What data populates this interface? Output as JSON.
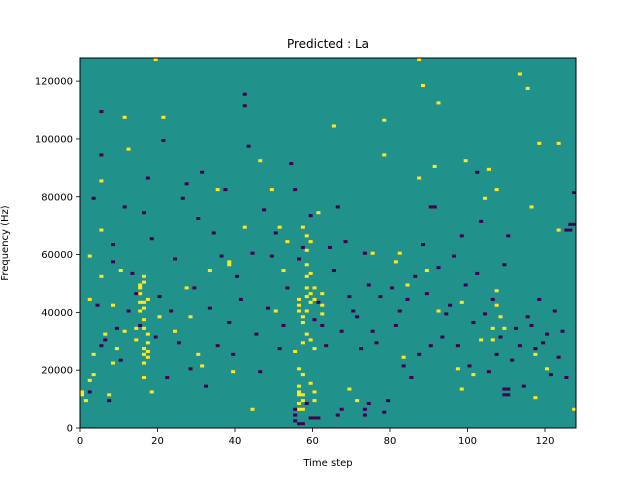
{
  "chart_data": {
    "type": "heatmap",
    "title": "Predicted : La",
    "xlabel": "Time step",
    "ylabel": "Frequency (Hz)",
    "xlim": [
      0,
      128
    ],
    "ylim": [
      0,
      128000
    ],
    "xticks": [
      0,
      20,
      40,
      60,
      80,
      100,
      120
    ],
    "yticks": [
      0,
      20000,
      40000,
      60000,
      80000,
      100000,
      120000
    ],
    "xtick_labels": [
      "0",
      "20",
      "40",
      "60",
      "80",
      "100",
      "120"
    ],
    "ytick_labels": [
      "0",
      "20000",
      "40000",
      "60000",
      "80000",
      "100000",
      "120000"
    ],
    "grid": false,
    "grid_shape": {
      "time_steps": 128,
      "freq_bins": 128,
      "bin_hz": 1000
    },
    "colormap": {
      "low": "#440154",
      "mid": "#21918c",
      "high": "#fde725"
    },
    "background_value": 0,
    "value_levels": [
      -1,
      0,
      1
    ],
    "high_cells": [
      [
        0,
        12
      ],
      [
        0,
        11
      ],
      [
        1,
        9
      ],
      [
        2,
        16
      ],
      [
        2,
        44
      ],
      [
        2,
        59
      ],
      [
        3,
        18
      ],
      [
        3,
        25
      ],
      [
        5,
        52
      ],
      [
        5,
        68
      ],
      [
        5,
        85
      ],
      [
        6,
        32
      ],
      [
        7,
        11
      ],
      [
        8,
        22
      ],
      [
        8,
        42
      ],
      [
        9,
        27
      ],
      [
        10,
        54
      ],
      [
        11,
        107
      ],
      [
        11,
        33
      ],
      [
        12,
        96
      ],
      [
        14,
        34
      ],
      [
        14,
        30
      ],
      [
        15,
        48
      ],
      [
        15,
        49
      ],
      [
        15,
        46
      ],
      [
        15,
        43
      ],
      [
        15,
        40
      ],
      [
        16,
        52
      ],
      [
        16,
        50
      ],
      [
        16,
        43
      ],
      [
        16,
        41
      ],
      [
        16,
        37
      ],
      [
        16,
        34
      ],
      [
        16,
        27
      ],
      [
        16,
        25
      ],
      [
        16,
        22
      ],
      [
        16,
        17
      ],
      [
        17,
        44
      ],
      [
        17,
        32
      ],
      [
        17,
        29
      ],
      [
        17,
        26
      ],
      [
        17,
        24
      ],
      [
        18,
        12
      ],
      [
        19,
        127
      ],
      [
        20,
        38
      ],
      [
        21,
        107
      ],
      [
        24,
        33
      ],
      [
        27,
        48
      ],
      [
        28,
        38
      ],
      [
        30,
        25
      ],
      [
        31,
        21
      ],
      [
        33,
        54
      ],
      [
        35,
        82
      ],
      [
        38,
        56
      ],
      [
        38,
        57
      ],
      [
        39,
        19
      ],
      [
        42,
        69
      ],
      [
        44,
        6
      ],
      [
        46,
        92
      ],
      [
        49,
        82
      ],
      [
        50,
        40
      ],
      [
        51,
        69
      ],
      [
        52,
        54
      ],
      [
        53,
        64
      ],
      [
        55,
        26
      ],
      [
        56,
        20
      ],
      [
        56,
        14
      ],
      [
        56,
        12
      ],
      [
        56,
        11
      ],
      [
        56,
        8
      ],
      [
        56,
        6
      ],
      [
        56,
        44
      ],
      [
        56,
        42
      ],
      [
        56,
        40
      ],
      [
        57,
        69
      ],
      [
        57,
        38
      ],
      [
        57,
        36
      ],
      [
        57,
        29
      ],
      [
        57,
        18
      ],
      [
        57,
        11
      ],
      [
        57,
        9
      ],
      [
        57,
        6
      ],
      [
        58,
        66
      ],
      [
        58,
        61
      ],
      [
        58,
        56
      ],
      [
        58,
        52
      ],
      [
        58,
        48
      ],
      [
        58,
        45
      ],
      [
        58,
        40
      ],
      [
        58,
        32
      ],
      [
        59,
        64
      ],
      [
        59,
        53
      ],
      [
        59,
        46
      ],
      [
        59,
        43
      ],
      [
        59,
        30
      ],
      [
        59,
        15
      ],
      [
        60,
        48
      ],
      [
        60,
        44
      ],
      [
        60,
        27
      ],
      [
        60,
        12
      ],
      [
        60,
        9
      ],
      [
        61,
        74
      ],
      [
        62,
        42
      ],
      [
        62,
        46
      ],
      [
        62,
        39
      ],
      [
        65,
        104
      ],
      [
        69,
        13
      ],
      [
        71,
        9
      ],
      [
        75,
        60
      ],
      [
        78,
        94
      ],
      [
        78,
        106
      ],
      [
        81,
        57
      ],
      [
        82,
        60
      ],
      [
        83,
        24
      ],
      [
        84,
        49
      ],
      [
        87,
        127
      ],
      [
        87,
        86
      ],
      [
        88,
        118
      ],
      [
        89,
        54
      ],
      [
        92,
        112
      ],
      [
        97,
        20
      ],
      [
        98,
        13
      ],
      [
        98,
        43
      ],
      [
        99,
        92
      ],
      [
        101,
        18
      ],
      [
        103,
        30
      ],
      [
        104,
        79
      ],
      [
        105,
        89
      ],
      [
        106,
        30
      ],
      [
        106,
        34
      ],
      [
        107,
        82
      ],
      [
        107,
        47
      ],
      [
        107,
        42
      ],
      [
        108,
        38
      ],
      [
        109,
        34
      ],
      [
        115,
        117
      ],
      [
        116,
        76
      ],
      [
        117,
        25
      ],
      [
        117,
        10
      ],
      [
        118,
        98
      ],
      [
        120,
        20
      ],
      [
        123,
        68
      ],
      [
        127,
        6
      ],
      [
        123,
        98
      ],
      [
        113,
        122
      ],
      [
        91,
        90
      ],
      [
        92,
        40
      ]
    ],
    "low_cells": [
      [
        2,
        12
      ],
      [
        3,
        79
      ],
      [
        4,
        42
      ],
      [
        5,
        28
      ],
      [
        5,
        94
      ],
      [
        5,
        109
      ],
      [
        6,
        30
      ],
      [
        7,
        9
      ],
      [
        8,
        57
      ],
      [
        8,
        63
      ],
      [
        9,
        34
      ],
      [
        10,
        23
      ],
      [
        11,
        76
      ],
      [
        12,
        40
      ],
      [
        13,
        53
      ],
      [
        14,
        46
      ],
      [
        15,
        35
      ],
      [
        16,
        74
      ],
      [
        17,
        86
      ],
      [
        18,
        65
      ],
      [
        19,
        31
      ],
      [
        20,
        45
      ],
      [
        21,
        99
      ],
      [
        22,
        17
      ],
      [
        23,
        40
      ],
      [
        24,
        58
      ],
      [
        25,
        29
      ],
      [
        26,
        79
      ],
      [
        27,
        84
      ],
      [
        28,
        20
      ],
      [
        29,
        48
      ],
      [
        30,
        72
      ],
      [
        31,
        88
      ],
      [
        32,
        14
      ],
      [
        33,
        41
      ],
      [
        34,
        67
      ],
      [
        35,
        28
      ],
      [
        36,
        59
      ],
      [
        37,
        82
      ],
      [
        38,
        36
      ],
      [
        39,
        25
      ],
      [
        40,
        52
      ],
      [
        41,
        44
      ],
      [
        42,
        111
      ],
      [
        42,
        115
      ],
      [
        43,
        97
      ],
      [
        44,
        60
      ],
      [
        45,
        32
      ],
      [
        46,
        19
      ],
      [
        47,
        75
      ],
      [
        48,
        41
      ],
      [
        49,
        59
      ],
      [
        50,
        67
      ],
      [
        51,
        27
      ],
      [
        52,
        35
      ],
      [
        53,
        48
      ],
      [
        54,
        91
      ],
      [
        55,
        82
      ],
      [
        56,
        58
      ],
      [
        57,
        62
      ],
      [
        58,
        8
      ],
      [
        59,
        73
      ],
      [
        60,
        37
      ],
      [
        61,
        43
      ],
      [
        62,
        35
      ],
      [
        63,
        28
      ],
      [
        64,
        62
      ],
      [
        65,
        54
      ],
      [
        66,
        76
      ],
      [
        67,
        33
      ],
      [
        68,
        64
      ],
      [
        69,
        45
      ],
      [
        70,
        40
      ],
      [
        71,
        38
      ],
      [
        72,
        27
      ],
      [
        73,
        60
      ],
      [
        74,
        49
      ],
      [
        75,
        33
      ],
      [
        76,
        29
      ],
      [
        77,
        45
      ],
      [
        78,
        5
      ],
      [
        79,
        9
      ],
      [
        80,
        48
      ],
      [
        81,
        35
      ],
      [
        82,
        40
      ],
      [
        83,
        21
      ],
      [
        84,
        44
      ],
      [
        85,
        17
      ],
      [
        86,
        52
      ],
      [
        87,
        25
      ],
      [
        88,
        63
      ],
      [
        89,
        46
      ],
      [
        90,
        28
      ],
      [
        91,
        76
      ],
      [
        92,
        55
      ],
      [
        93,
        31
      ],
      [
        94,
        39
      ],
      [
        95,
        42
      ],
      [
        96,
        59
      ],
      [
        97,
        28
      ],
      [
        98,
        66
      ],
      [
        99,
        49
      ],
      [
        100,
        21
      ],
      [
        101,
        36
      ],
      [
        102,
        53
      ],
      [
        103,
        71
      ],
      [
        104,
        39
      ],
      [
        105,
        19
      ],
      [
        106,
        44
      ],
      [
        107,
        25
      ],
      [
        108,
        31
      ],
      [
        109,
        56
      ],
      [
        110,
        66
      ],
      [
        111,
        23
      ],
      [
        112,
        34
      ],
      [
        113,
        28
      ],
      [
        114,
        14
      ],
      [
        115,
        38
      ],
      [
        116,
        35
      ],
      [
        117,
        27
      ],
      [
        118,
        44
      ],
      [
        119,
        29
      ],
      [
        120,
        32
      ],
      [
        121,
        18
      ],
      [
        122,
        40
      ],
      [
        123,
        24
      ],
      [
        124,
        33
      ],
      [
        125,
        17
      ],
      [
        126,
        68
      ],
      [
        127,
        81
      ],
      [
        55,
        6
      ],
      [
        55,
        4
      ],
      [
        66,
        4
      ],
      [
        67,
        6
      ],
      [
        73,
        6
      ],
      [
        73,
        4
      ],
      [
        74,
        8
      ],
      [
        102,
        88
      ],
      [
        90,
        76
      ],
      [
        91,
        76
      ],
      [
        109,
        13
      ],
      [
        110,
        13
      ],
      [
        109,
        11
      ],
      [
        110,
        11
      ],
      [
        125,
        68
      ],
      [
        126,
        70
      ],
      [
        127,
        70
      ],
      [
        59,
        3
      ],
      [
        60,
        3
      ],
      [
        61,
        3
      ],
      [
        55,
        2
      ],
      [
        56,
        1
      ],
      [
        57,
        1
      ]
    ]
  }
}
